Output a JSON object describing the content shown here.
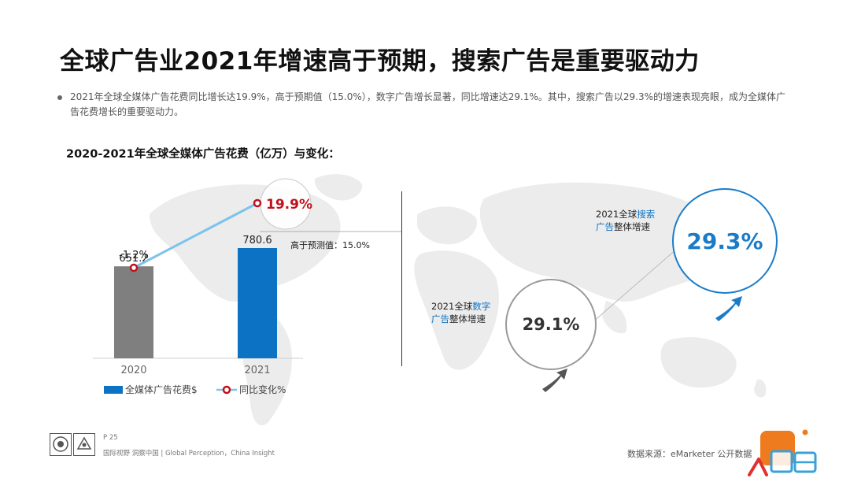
{
  "title": "全球广告业2021年增速高于预期，搜索广告是重要驱动力",
  "bullet": "2021年全球全媒体广告花费同比增长达19.9%，高于预期值（15.0%），数字广告增长显著，同比增速达29.1%。其中，搜索广告以29.3%的增速表现亮眼，成为全媒体广告花费增长的重要驱动力。",
  "chart_subtitle": "2020-2021年全球全媒体广告花费（亿万）与变化：",
  "chart_data": {
    "type": "bar",
    "categories": [
      "2020",
      "2021"
    ],
    "series": [
      {
        "name": "全媒体广告花费$",
        "type": "bar",
        "values": [
          651.2,
          780.6
        ],
        "colors": [
          "#7f7f7f",
          "#0b72c4"
        ]
      },
      {
        "name": "同比变化%",
        "type": "line",
        "values": [
          -1.2,
          19.9
        ],
        "labels": [
          "-1.2%",
          "19.9%"
        ],
        "color": "#7dc3ec"
      }
    ],
    "bar_labels": [
      "651.2",
      "780.6"
    ],
    "annotation": "高于预测值：15.0%",
    "legend_position": "bottom"
  },
  "right_panel": {
    "digital": {
      "label_prefix": "2021全球",
      "label_hl": "数字",
      "label_hl2": "广告",
      "label_suffix": "整体增速",
      "value": "29.1%"
    },
    "search": {
      "label_prefix": "2021全球",
      "label_hl": "搜索",
      "label_hl2": "广告",
      "label_suffix": "整体增速",
      "value": "29.3%"
    }
  },
  "footer": {
    "page": "P 25",
    "tagline": "国际视野 洞察中国 | Global Perception，China Insight",
    "source": "数据来源：eMarketer 公开数据"
  },
  "colors": {
    "accent_blue": "#0b72c4",
    "highlight_red": "#c0121b",
    "line_blue": "#7dc3ec",
    "gray_bar": "#7f7f7f"
  }
}
